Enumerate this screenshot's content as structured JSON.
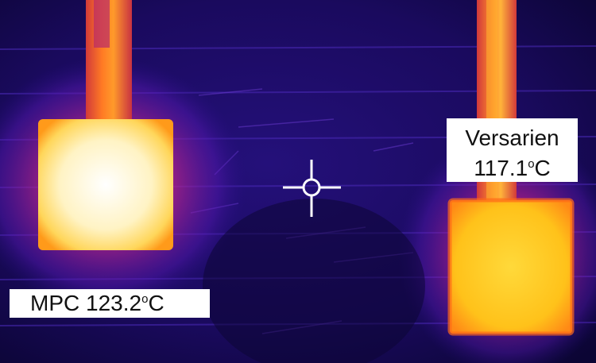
{
  "image": {
    "description_colors": {
      "background_dark": "#12083f",
      "background_mid": "#3a10a0",
      "hot_white": "#fff6d8",
      "hot_yellow": "#ffc21a",
      "warm_orange": "#f2541c",
      "warm_magenta": "#b41a8c"
    }
  },
  "labels": {
    "mpc": {
      "name": "MPC",
      "value": "123.2",
      "unit": "o",
      "scale": "C"
    },
    "versarien": {
      "name": "Versarien",
      "value": "117.1",
      "unit": "o",
      "scale": "C"
    }
  },
  "crosshair": {
    "icon": "crosshair-icon"
  }
}
